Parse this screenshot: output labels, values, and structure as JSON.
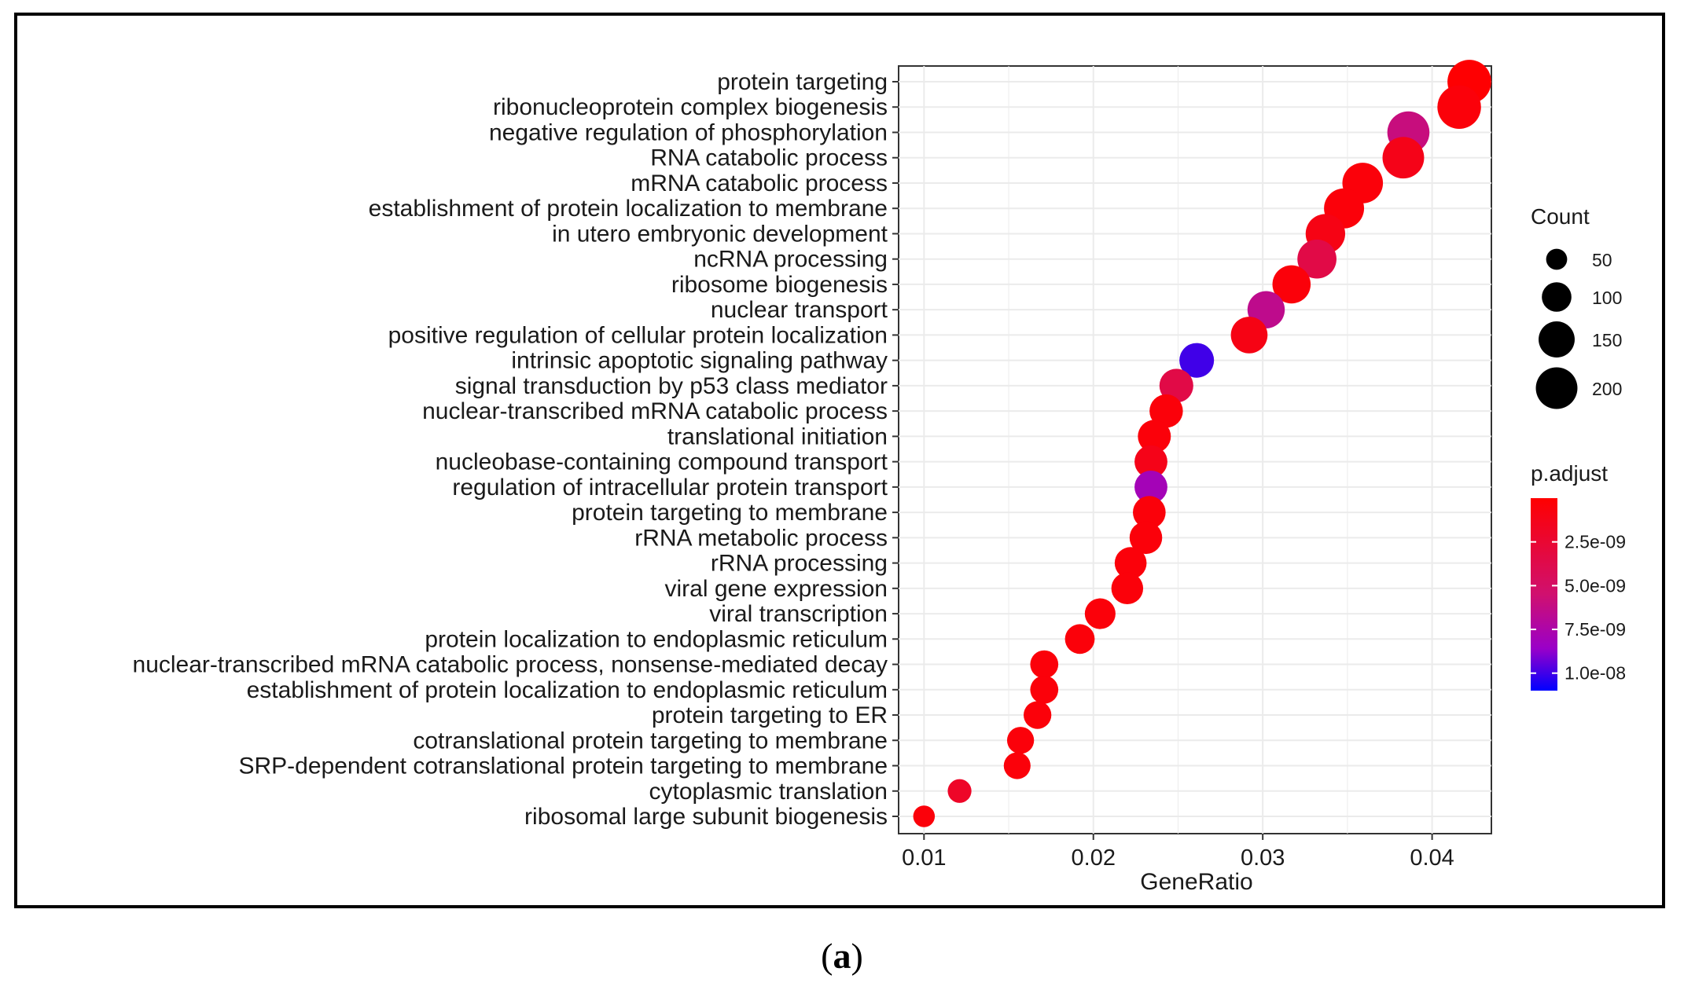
{
  "chart_data": {
    "type": "scatter",
    "xlabel": "GeneRatio",
    "xlim": [
      0.0085,
      0.0435
    ],
    "xticks": [
      0.01,
      0.02,
      0.03,
      0.04
    ],
    "xtick_labels": [
      "0.01",
      "0.02",
      "0.03",
      "0.04"
    ],
    "grid": true,
    "size_legend": {
      "title": "Count",
      "entries": [
        {
          "label": "50",
          "value": 50
        },
        {
          "label": "100",
          "value": 100
        },
        {
          "label": "150",
          "value": 150
        },
        {
          "label": "200",
          "value": 200
        }
      ]
    },
    "color_legend": {
      "title": "p.adjust",
      "min": 0,
      "max": 1.1e-08,
      "ticks": [
        {
          "label": "2.5e-09",
          "value": 2.5e-09
        },
        {
          "label": "5.0e-09",
          "value": 5e-09
        },
        {
          "label": "7.5e-09",
          "value": 7.5e-09
        },
        {
          "label": "1.0e-08",
          "value": 1e-08
        }
      ],
      "low_color": "#ff0000",
      "high_color": "#0000ff"
    },
    "points": [
      {
        "term": "protein targeting",
        "gene_ratio": 0.0422,
        "count": 222,
        "p_adjust": 1e-10
      },
      {
        "term": "ribonucleoprotein complex biogenesis",
        "gene_ratio": 0.0416,
        "count": 220,
        "p_adjust": 5e-10
      },
      {
        "term": "negative regulation of phosphorylation",
        "gene_ratio": 0.0386,
        "count": 205,
        "p_adjust": 6e-09
      },
      {
        "term": "RNA catabolic process",
        "gene_ratio": 0.0383,
        "count": 200,
        "p_adjust": 1.2e-09
      },
      {
        "term": "mRNA catabolic process",
        "gene_ratio": 0.0359,
        "count": 190,
        "p_adjust": 5e-10
      },
      {
        "term": "establishment of protein localization to membrane",
        "gene_ratio": 0.0348,
        "count": 185,
        "p_adjust": 5e-10
      },
      {
        "term": "in utero embryonic development",
        "gene_ratio": 0.0337,
        "count": 180,
        "p_adjust": 1e-09
      },
      {
        "term": "ncRNA processing",
        "gene_ratio": 0.0332,
        "count": 176,
        "p_adjust": 3.5e-09
      },
      {
        "term": "ribosome biogenesis",
        "gene_ratio": 0.0317,
        "count": 168,
        "p_adjust": 5e-10
      },
      {
        "term": "nuclear transport",
        "gene_ratio": 0.0302,
        "count": 160,
        "p_adjust": 6.5e-09
      },
      {
        "term": "positive regulation of cellular protein localization",
        "gene_ratio": 0.0292,
        "count": 155,
        "p_adjust": 1e-09
      },
      {
        "term": "intrinsic apoptotic signaling pathway",
        "gene_ratio": 0.0261,
        "count": 138,
        "p_adjust": 1e-08
      },
      {
        "term": "signal transduction by p53 class mediator",
        "gene_ratio": 0.0249,
        "count": 132,
        "p_adjust": 3.5e-09
      },
      {
        "term": "nuclear-transcribed mRNA catabolic process",
        "gene_ratio": 0.0243,
        "count": 128,
        "p_adjust": 5e-10
      },
      {
        "term": "translational initiation",
        "gene_ratio": 0.0236,
        "count": 125,
        "p_adjust": 5e-10
      },
      {
        "term": "nucleobase-containing compound transport",
        "gene_ratio": 0.0234,
        "count": 124,
        "p_adjust": 1.2e-09
      },
      {
        "term": "regulation of intracellular protein transport",
        "gene_ratio": 0.0234,
        "count": 124,
        "p_adjust": 8e-09
      },
      {
        "term": "protein targeting to membrane",
        "gene_ratio": 0.0233,
        "count": 123,
        "p_adjust": 5e-10
      },
      {
        "term": "rRNA metabolic process",
        "gene_ratio": 0.0231,
        "count": 122,
        "p_adjust": 5e-10
      },
      {
        "term": "rRNA processing",
        "gene_ratio": 0.0222,
        "count": 117,
        "p_adjust": 5e-10
      },
      {
        "term": "viral gene expression",
        "gene_ratio": 0.022,
        "count": 116,
        "p_adjust": 5e-10
      },
      {
        "term": "viral transcription",
        "gene_ratio": 0.0204,
        "count": 108,
        "p_adjust": 5e-10
      },
      {
        "term": "protein localization to endoplasmic reticulum",
        "gene_ratio": 0.0192,
        "count": 101,
        "p_adjust": 5e-10
      },
      {
        "term": "nuclear-transcribed mRNA catabolic process, nonsense-mediated decay",
        "gene_ratio": 0.0171,
        "count": 90,
        "p_adjust": 5e-10
      },
      {
        "term": "establishment of protein localization to endoplasmic reticulum",
        "gene_ratio": 0.0171,
        "count": 90,
        "p_adjust": 5e-10
      },
      {
        "term": "protein targeting to ER",
        "gene_ratio": 0.0167,
        "count": 88,
        "p_adjust": 5e-10
      },
      {
        "term": "cotranslational protein targeting to membrane",
        "gene_ratio": 0.0157,
        "count": 83,
        "p_adjust": 5e-10
      },
      {
        "term": "SRP-dependent cotranslational protein targeting to membrane",
        "gene_ratio": 0.0155,
        "count": 82,
        "p_adjust": 5e-10
      },
      {
        "term": "cytoplasmic translation",
        "gene_ratio": 0.0121,
        "count": 64,
        "p_adjust": 2e-09
      },
      {
        "term": "ribosomal large subunit biogenesis",
        "gene_ratio": 0.01,
        "count": 53,
        "p_adjust": 5e-10
      }
    ]
  },
  "caption": {
    "open": "(",
    "label": "a",
    "close": ")"
  }
}
